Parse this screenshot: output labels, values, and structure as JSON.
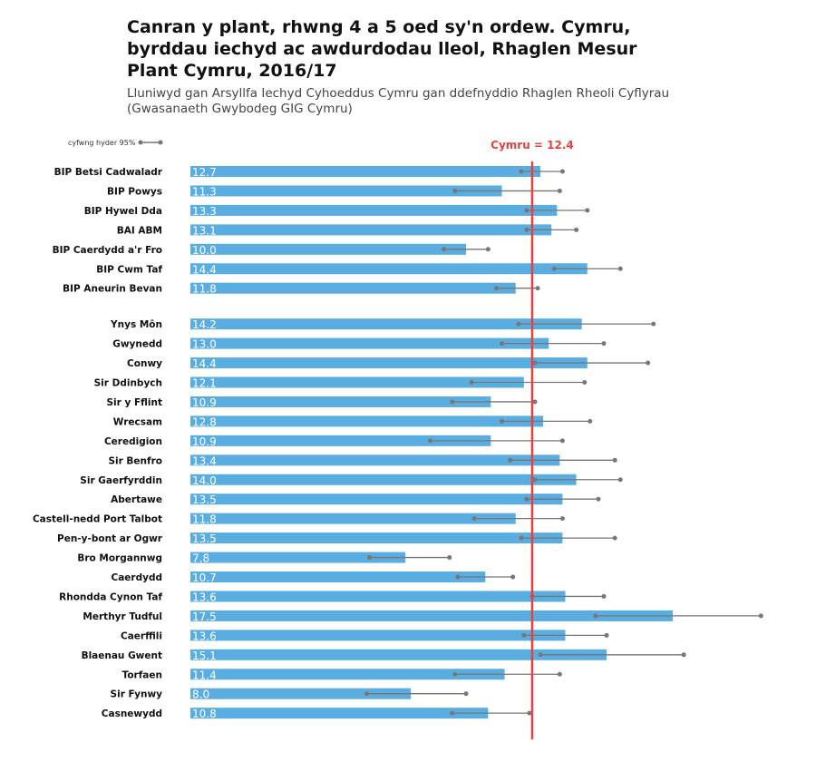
{
  "chart_data": {
    "type": "bar",
    "title": "Canran y plant, rhwng 4 a 5 oed sy'n ordew. Cymru, byrddau iechyd ac awdurdodau lleol, Rhaglen Mesur Plant Cymru, 2016/17",
    "subtitle": "Lluniwyd gan Arsyllfa Iechyd Cyhoeddus Cymru gan ddefnyddio Rhaglen Rheoli Cyflyrau (Gwasanaeth Gwybodeg GIG Cymru)",
    "legend": "cyfwng hyder 95%",
    "reference": {
      "label": "Cymru = 12.4",
      "value": 12.4
    },
    "colors": {
      "bar": "#5aade0",
      "ci": "#777777",
      "reference": "#e8413c"
    },
    "groups": [
      {
        "name": "health_boards",
        "rows": [
          {
            "label": "BIP Betsi Cadwaladr",
            "value": 12.7,
            "lo": 12.0,
            "hi": 13.5
          },
          {
            "label": "BIP Powys",
            "value": 11.3,
            "lo": 9.6,
            "hi": 13.4
          },
          {
            "label": "BIP Hywel Dda",
            "value": 13.3,
            "lo": 12.2,
            "hi": 14.4
          },
          {
            "label": "BAI ABM",
            "value": 13.1,
            "lo": 12.2,
            "hi": 14.0
          },
          {
            "label": "BIP Caerdydd a'r Fro",
            "value": 10.0,
            "lo": 9.2,
            "hi": 10.8
          },
          {
            "label": "BIP Cwm Taf",
            "value": 14.4,
            "lo": 13.2,
            "hi": 15.6
          },
          {
            "label": "BIP Aneurin Bevan",
            "value": 11.8,
            "lo": 11.1,
            "hi": 12.6
          }
        ]
      },
      {
        "name": "local_authorities",
        "rows": [
          {
            "label": "Ynys Môn",
            "value": 14.2,
            "lo": 11.9,
            "hi": 16.8
          },
          {
            "label": "Gwynedd",
            "value": 13.0,
            "lo": 11.3,
            "hi": 15.0
          },
          {
            "label": "Conwy",
            "value": 14.4,
            "lo": 12.5,
            "hi": 16.6
          },
          {
            "label": "Sir Ddinbych",
            "value": 12.1,
            "lo": 10.2,
            "hi": 14.3
          },
          {
            "label": "Sir y Fflint",
            "value": 10.9,
            "lo": 9.5,
            "hi": 12.5
          },
          {
            "label": "Wrecsam",
            "value": 12.8,
            "lo": 11.3,
            "hi": 14.5
          },
          {
            "label": "Ceredigion",
            "value": 10.9,
            "lo": 8.7,
            "hi": 13.5
          },
          {
            "label": "Sir Benfro",
            "value": 13.4,
            "lo": 11.6,
            "hi": 15.4
          },
          {
            "label": "Sir Gaerfyrddin",
            "value": 14.0,
            "lo": 12.5,
            "hi": 15.6
          },
          {
            "label": "Abertawe",
            "value": 13.5,
            "lo": 12.2,
            "hi": 14.8
          },
          {
            "label": "Castell-nedd Port Talbot",
            "value": 11.8,
            "lo": 10.3,
            "hi": 13.5
          },
          {
            "label": "Pen-y-bont ar Ogwr",
            "value": 13.5,
            "lo": 12.0,
            "hi": 15.4
          },
          {
            "label": "Bro Morgannwg",
            "value": 7.8,
            "lo": 6.5,
            "hi": 9.4
          },
          {
            "label": "Caerdydd",
            "value": 10.7,
            "lo": 9.7,
            "hi": 11.7
          },
          {
            "label": "Rhondda Cynon Taf",
            "value": 13.6,
            "lo": 12.4,
            "hi": 15.0
          },
          {
            "label": "Merthyr Tudful",
            "value": 17.5,
            "lo": 14.7,
            "hi": 20.7
          },
          {
            "label": "Caerffili",
            "value": 13.6,
            "lo": 12.1,
            "hi": 15.1
          },
          {
            "label": "Blaenau Gwent",
            "value": 15.1,
            "lo": 12.7,
            "hi": 17.9
          },
          {
            "label": "Torfaen",
            "value": 11.4,
            "lo": 9.6,
            "hi": 13.4
          },
          {
            "label": "Sir Fynwy",
            "value": 8.0,
            "lo": 6.4,
            "hi": 10.0
          },
          {
            "label": "Casnewydd",
            "value": 10.8,
            "lo": 9.5,
            "hi": 12.3
          }
        ]
      }
    ],
    "xlim": [
      0,
      22
    ]
  }
}
